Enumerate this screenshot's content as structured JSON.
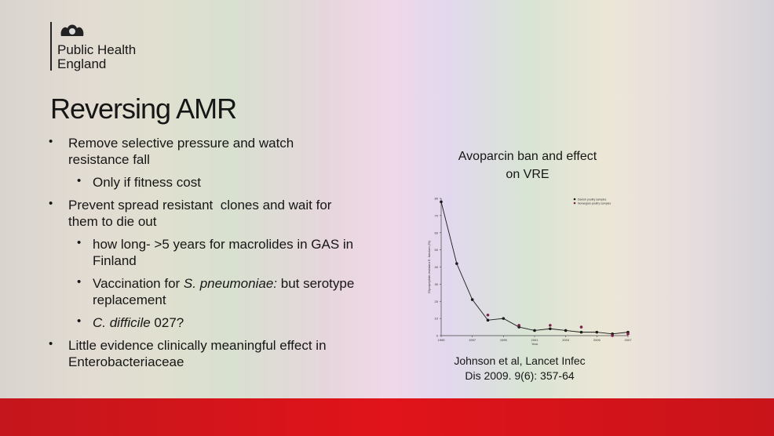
{
  "logo": {
    "lines": [
      "Public Health",
      "England"
    ]
  },
  "title": "Reversing AMR",
  "bullets": [
    {
      "level": 1,
      "lines": [
        [
          {
            "text": "Remove selective pressure and watch"
          }
        ],
        [
          {
            "text": "resistance fall"
          }
        ]
      ]
    },
    {
      "level": 2,
      "lines": [
        [
          {
            "text": "Only if fitness cost"
          }
        ]
      ]
    },
    {
      "level": 1,
      "lines": [
        [
          {
            "text": "Prevent spread resistant  clones and wait for"
          }
        ],
        [
          {
            "text": "them to die out"
          }
        ]
      ]
    },
    {
      "level": 2,
      "lines": [
        [
          {
            "text": "how long- >5 years for macrolides in GAS in"
          }
        ],
        [
          {
            "text": "Finland"
          }
        ]
      ]
    },
    {
      "level": 2,
      "lines": [
        [
          {
            "text": "Vaccination for "
          },
          {
            "text": "S. pneumoniae:",
            "italic": true
          },
          {
            "text": " but serotype"
          }
        ],
        [
          {
            "text": "replacement"
          }
        ]
      ]
    },
    {
      "level": 2,
      "lines": [
        [
          {
            "text": "C. difficile",
            "italic": true
          },
          {
            "text": " 027?"
          }
        ]
      ]
    },
    {
      "level": 1,
      "lines": [
        [
          {
            "text": "Little evidence clinically meaningful effect in"
          }
        ],
        [
          {
            "text": "Enterobacteriaceae"
          }
        ]
      ]
    }
  ],
  "figure": {
    "title_lines": [
      "Avoparcin ban and effect",
      "on VRE"
    ],
    "citation_lines": [
      "Johnson et al, Lancet Infec",
      "Dis 2009. 9(6): 357-64"
    ]
  },
  "chart_data": {
    "type": "line",
    "xlabel": "Year",
    "ylabel": "Glycopeptide-resistant E. faecium (%)",
    "xlim": [
      1995,
      2007
    ],
    "ylim": [
      0,
      80
    ],
    "xticks": [
      1995,
      1997,
      1999,
      2001,
      2003,
      2005,
      2007
    ],
    "yticks": [
      0,
      10,
      20,
      30,
      40,
      50,
      60,
      70,
      80
    ],
    "series": [
      {
        "name": "Danish poultry samples",
        "color": "#1a1a1a",
        "line": true,
        "x": [
          1995,
          1996,
          1997,
          1998,
          1999,
          2000,
          2001,
          2002,
          2003,
          2004,
          2005,
          2006,
          2007
        ],
        "values": [
          78,
          42,
          21,
          9,
          10,
          5,
          3,
          4,
          3,
          2,
          2,
          1,
          2
        ]
      },
      {
        "name": "Norwegian poultry samples",
        "color": "#7a1f4a",
        "line": false,
        "x": [
          1998,
          2000,
          2002,
          2004,
          2006,
          2007
        ],
        "values": [
          12,
          6,
          6,
          5,
          0,
          1
        ]
      }
    ]
  }
}
